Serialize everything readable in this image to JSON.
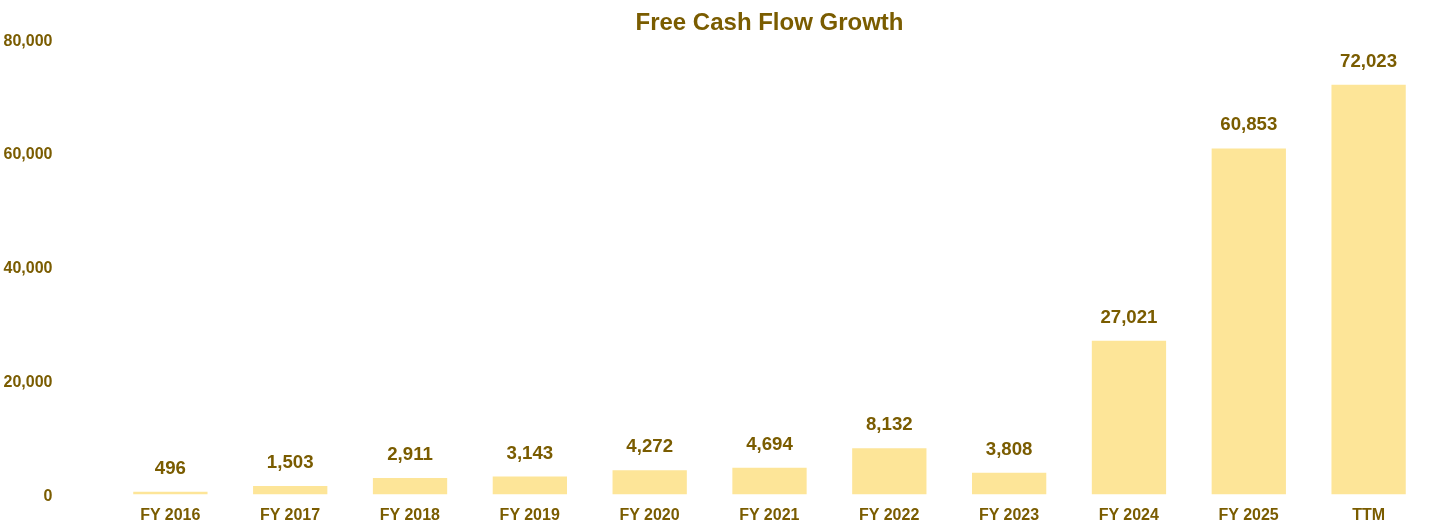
{
  "chart_data": {
    "type": "bar",
    "title": "Free Cash Flow Growth",
    "categories": [
      "FY 2016",
      "FY 2017",
      "FY 2018",
      "FY 2019",
      "FY 2020",
      "FY 2021",
      "FY 2022",
      "FY 2023",
      "FY 2024",
      "FY 2025",
      "TTM"
    ],
    "values": [
      496,
      1503,
      2911,
      3143,
      4272,
      4694,
      8132,
      3808,
      27021,
      60853,
      72023
    ],
    "value_labels": [
      "496",
      "1,503",
      "2,911",
      "3,143",
      "4,272",
      "4,694",
      "8,132",
      "3,808",
      "27,021",
      "60,853",
      "72,023"
    ],
    "color": "#fde598",
    "grid": false,
    "ylim": [
      0,
      80000
    ],
    "yticks": [
      {
        "value": 0,
        "label": "0"
      },
      {
        "value": 20000,
        "label": "20,000"
      },
      {
        "value": 40000,
        "label": "40,000"
      },
      {
        "value": 60000,
        "label": "60,000"
      },
      {
        "value": 80000,
        "label": "80,000"
      }
    ]
  }
}
